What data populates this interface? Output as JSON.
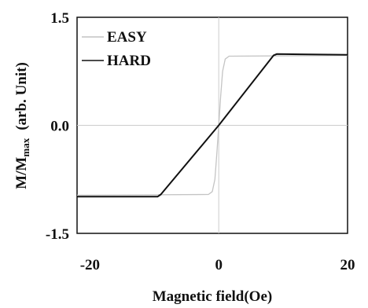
{
  "chart_data": {
    "type": "line",
    "title": "",
    "xlabel": "Magnetic field(Oe)",
    "ylabel_main": "M/M",
    "ylabel_sub": "max",
    "ylabel_unit": "(arb. Unit)",
    "xlim": [
      -22,
      20
    ],
    "ylim": [
      -1.5,
      1.5
    ],
    "xticks": [
      -20,
      0,
      20
    ],
    "xtick_labels": [
      "-20",
      "0",
      "20"
    ],
    "yticks": [
      1.5,
      0.0,
      -1.5
    ],
    "ytick_labels": [
      "1.5",
      "0.0",
      "-1.5"
    ],
    "grid": false,
    "zero_lines": true,
    "legend_position": "top-left",
    "series": [
      {
        "name": "EASY",
        "color": "#c4c4c4",
        "x": [
          -22,
          -1.6,
          -1.0,
          -0.6,
          -0.3,
          0.0,
          0.3,
          0.6,
          1.0,
          1.6,
          20
        ],
        "y": [
          -0.97,
          -0.96,
          -0.92,
          -0.75,
          -0.4,
          0.0,
          0.4,
          0.75,
          0.92,
          0.96,
          0.97
        ]
      },
      {
        "name": "HARD",
        "color": "#111111",
        "x": [
          -22,
          -9.5,
          -9.0,
          0.0,
          8.5,
          9.0,
          20
        ],
        "y": [
          -0.99,
          -0.99,
          -0.96,
          0.0,
          0.97,
          0.99,
          0.98
        ]
      }
    ]
  }
}
